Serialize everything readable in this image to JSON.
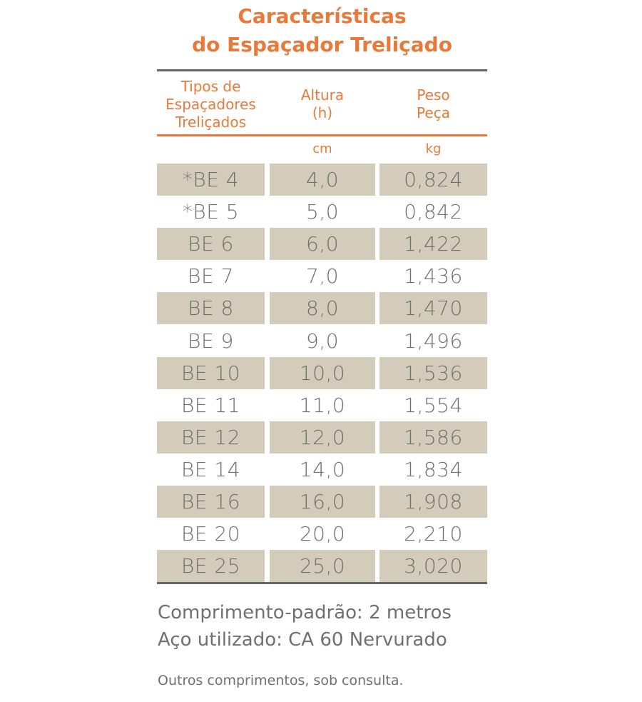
{
  "title": {
    "line1": "Características",
    "line2": "do Espaçador Treliçado"
  },
  "headers": {
    "type": "Tipos de Espaçadores Treliçados",
    "height": "Altura (h)",
    "weight": "Peso Peça"
  },
  "units": {
    "height": "cm",
    "weight": "kg"
  },
  "rows": [
    {
      "type": "*BE 4",
      "height": "4,0",
      "weight": "0,824"
    },
    {
      "type": "*BE 5",
      "height": "5,0",
      "weight": "0,842"
    },
    {
      "type": "BE 6",
      "height": "6,0",
      "weight": "1,422"
    },
    {
      "type": "BE 7",
      "height": "7,0",
      "weight": "1,436"
    },
    {
      "type": "BE 8",
      "height": "8,0",
      "weight": "1,470"
    },
    {
      "type": "BE 9",
      "height": "9,0",
      "weight": "1,496"
    },
    {
      "type": "BE 10",
      "height": "10,0",
      "weight": "1,536"
    },
    {
      "type": "BE 11",
      "height": "11,0",
      "weight": "1,554"
    },
    {
      "type": "BE 12",
      "height": "12,0",
      "weight": "1,586"
    },
    {
      "type": "BE 14",
      "height": "14,0",
      "weight": "1,834"
    },
    {
      "type": "BE 16",
      "height": "16,0",
      "weight": "1,908"
    },
    {
      "type": "BE 20",
      "height": "20,0",
      "weight": "2,210"
    },
    {
      "type": "BE 25",
      "height": "25,0",
      "weight": "3,020"
    }
  ],
  "notes": {
    "length": "Comprimento-padrão: 2 metros",
    "steel": "Aço utilizado: CA 60 Nervurado",
    "other": "Outros comprimentos, sob consulta."
  },
  "colors": {
    "accent": "#e8793a",
    "shade": "#d4ccba",
    "text": "#707070"
  }
}
